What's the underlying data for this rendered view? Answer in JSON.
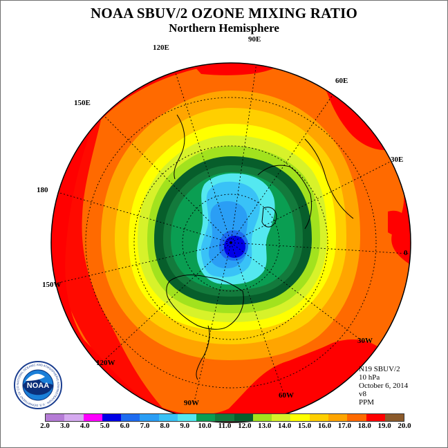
{
  "header": {
    "title": "NOAA SBUV/2 OZONE MIXING RATIO",
    "subtitle": "Northern Hemisphere"
  },
  "longitude_labels": [
    "90E",
    "60E",
    "30E",
    "0",
    "30W",
    "60W",
    "90W",
    "120W",
    "150W",
    "180",
    "150E",
    "120E"
  ],
  "info": {
    "instrument": "N19 SBUV/2",
    "pressure_level": "10 hPa",
    "date": "October 6, 2014",
    "version": "v8",
    "units": "PPM"
  },
  "color_scale": {
    "tick_labels": [
      "2.0",
      "3.0",
      "4.0",
      "5.0",
      "6.0",
      "7.0",
      "8.0",
      "9.0",
      "10.0",
      "11.0",
      "12.0",
      "13.0",
      "14.0",
      "15.0",
      "16.0",
      "17.0",
      "18.0",
      "19.0",
      "20.0"
    ],
    "colors": [
      "#b57cd6",
      "#d6aaf0",
      "#ff00ff",
      "#0000e6",
      "#1e6cf0",
      "#2a9ef5",
      "#39c2f7",
      "#54e8f0",
      "#0a9e52",
      "#137a3c",
      "#075e2b",
      "#a2e21e",
      "#d7f22a",
      "#ffff00",
      "#ffcf00",
      "#ffa500",
      "#ff6a00",
      "#ff0000",
      "#8b5a2b"
    ]
  },
  "logo": {
    "text": "NOAA",
    "ring_text": "NATIONAL OCEANIC AND ATMOSPHERIC ADMINISTRATION · U.S. DEPARTMENT OF COMMERCE"
  }
}
